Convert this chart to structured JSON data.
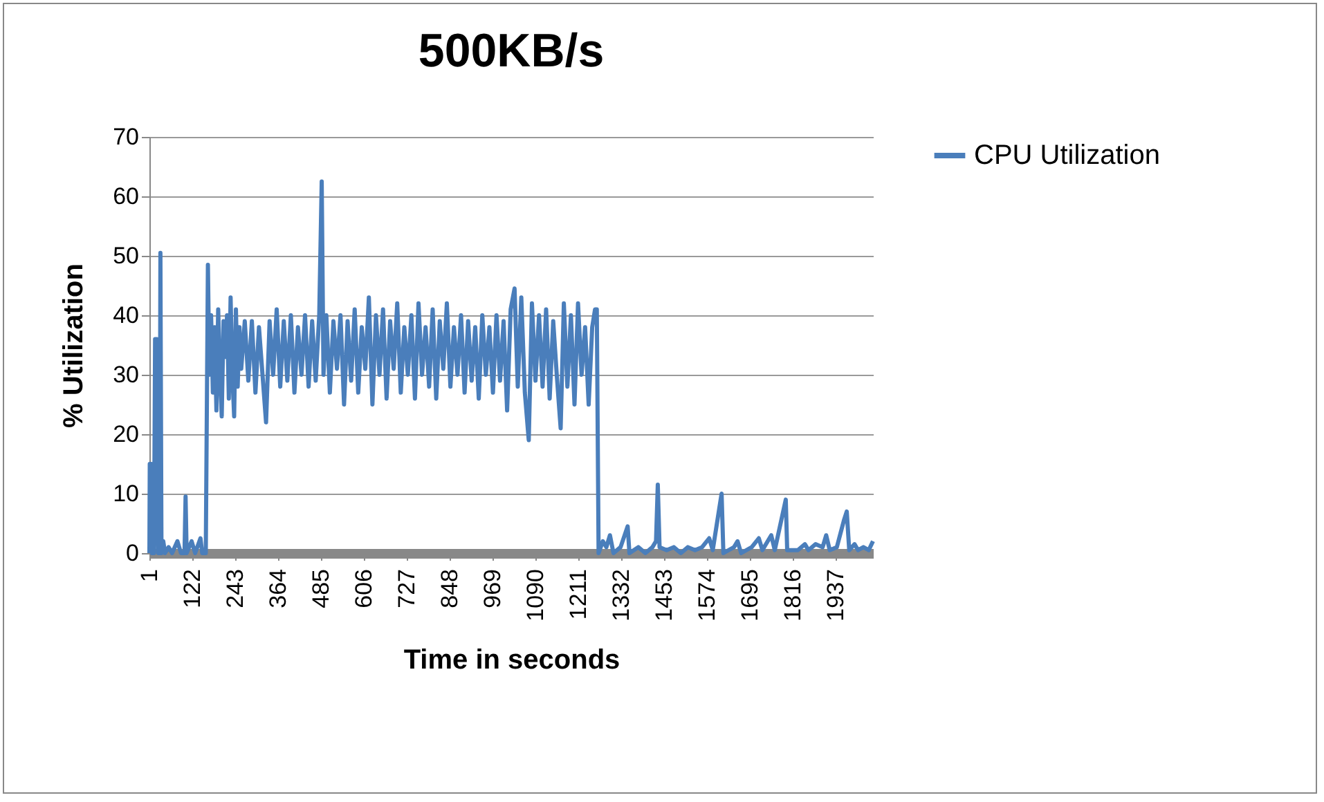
{
  "chart_data": {
    "type": "line",
    "title": "500KB/s",
    "xlabel": "Time in seconds",
    "ylabel": "% Utilization",
    "legend": "right",
    "grid": "y",
    "marker": "none",
    "line_style": "solid",
    "xlim": [
      1,
      2042
    ],
    "xticks": [
      1,
      122,
      243,
      364,
      485,
      606,
      727,
      848,
      969,
      1090,
      1211,
      1332,
      1453,
      1574,
      1695,
      1816,
      1937
    ],
    "ylim": [
      0,
      70
    ],
    "yticks": [
      0,
      10,
      20,
      30,
      40,
      50,
      60,
      70
    ],
    "x": [
      1,
      2,
      6,
      8,
      14,
      17,
      22,
      26,
      30,
      32,
      35,
      40,
      45,
      55,
      65,
      80,
      90,
      100,
      103,
      106,
      120,
      130,
      145,
      150,
      160,
      166,
      170,
      175,
      180,
      185,
      190,
      195,
      200,
      205,
      210,
      215,
      220,
      225,
      230,
      235,
      240,
      245,
      250,
      255,
      260,
      270,
      280,
      290,
      300,
      310,
      320,
      330,
      340,
      350,
      360,
      370,
      380,
      390,
      400,
      410,
      420,
      430,
      440,
      450,
      460,
      470,
      480,
      487,
      492,
      500,
      510,
      520,
      530,
      540,
      550,
      560,
      570,
      580,
      590,
      600,
      610,
      620,
      630,
      640,
      650,
      660,
      670,
      680,
      690,
      700,
      710,
      720,
      730,
      740,
      750,
      760,
      770,
      780,
      790,
      800,
      810,
      820,
      830,
      840,
      850,
      860,
      870,
      880,
      890,
      900,
      910,
      920,
      930,
      940,
      950,
      960,
      970,
      980,
      990,
      1000,
      1010,
      1020,
      1031,
      1040,
      1050,
      1060,
      1071,
      1080,
      1090,
      1100,
      1110,
      1120,
      1130,
      1140,
      1150,
      1161,
      1170,
      1180,
      1190,
      1200,
      1210,
      1220,
      1230,
      1240,
      1250,
      1258,
      1263,
      1268,
      1280,
      1290,
      1300,
      1310,
      1330,
      1350,
      1355,
      1380,
      1400,
      1420,
      1430,
      1435,
      1440,
      1460,
      1480,
      1500,
      1520,
      1540,
      1560,
      1580,
      1590,
      1615,
      1620,
      1650,
      1660,
      1670,
      1700,
      1720,
      1730,
      1755,
      1765,
      1796,
      1800,
      1830,
      1850,
      1860,
      1880,
      1900,
      1910,
      1920,
      1940,
      1960,
      1968,
      1975,
      1990,
      2000,
      2015,
      2030,
      2042
    ],
    "series": [
      {
        "name": "CPU Utilization",
        "color": "#4a7ebb",
        "values": [
          0,
          15,
          15,
          0,
          0,
          36,
          36,
          0,
          0,
          50.5,
          0,
          2,
          0,
          1,
          0,
          2,
          0,
          0,
          9.5,
          0,
          2,
          0,
          2.5,
          0,
          0,
          48.5,
          30,
          40,
          27,
          38,
          24,
          41,
          30,
          23,
          39,
          33,
          40,
          26,
          43,
          30,
          23,
          41,
          28,
          38,
          31,
          39,
          29,
          39,
          27,
          38,
          30,
          22,
          39,
          30,
          41,
          28,
          39,
          29,
          40,
          27,
          38,
          30,
          40,
          28,
          39,
          29,
          40,
          62.5,
          30,
          40,
          27,
          39,
          31,
          40,
          25,
          39,
          29,
          41,
          27,
          38,
          31,
          43,
          25,
          40,
          30,
          41,
          26,
          39,
          31,
          42,
          27,
          38,
          30,
          40,
          26,
          42,
          30,
          38,
          28,
          41,
          26,
          39,
          31,
          42,
          28,
          38,
          30,
          40,
          27,
          39,
          29,
          38,
          26,
          40,
          30,
          38,
          27,
          40,
          29,
          39,
          24,
          41,
          44.5,
          28,
          43,
          27,
          19,
          42,
          29,
          40,
          28,
          41,
          26,
          39,
          30,
          21,
          42,
          28,
          40,
          25,
          42,
          30,
          38,
          25,
          38,
          41,
          41,
          0,
          2,
          1,
          3,
          0,
          1,
          4.5,
          0,
          1,
          0,
          1,
          2,
          11.5,
          1,
          0.5,
          1,
          0,
          1,
          0.5,
          1,
          2.5,
          0.5,
          10,
          0,
          1,
          2,
          0,
          1,
          2.5,
          0.5,
          3,
          0.5,
          9,
          0.5,
          0.5,
          1.5,
          0.5,
          1.5,
          1,
          3,
          0.5,
          1,
          5.5,
          7,
          0.5,
          1.5,
          0.5,
          1,
          0.5,
          2
        ]
      }
    ]
  }
}
